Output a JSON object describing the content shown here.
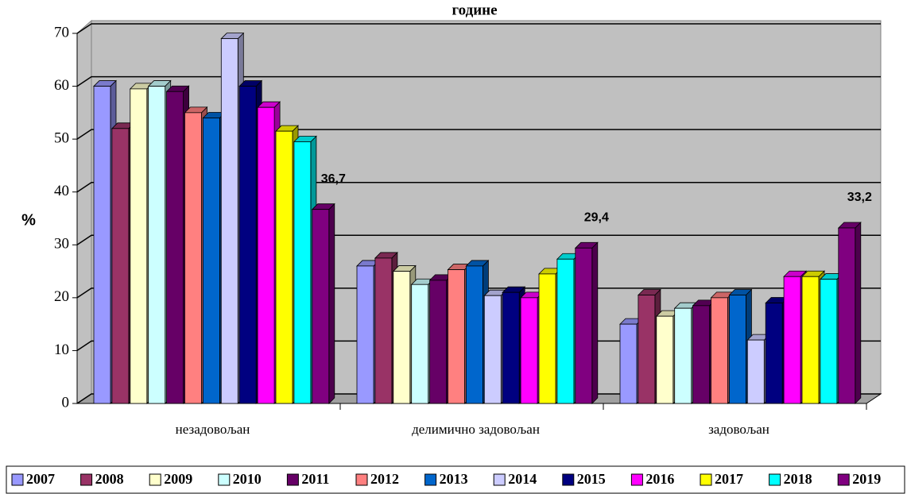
{
  "chart_data": {
    "type": "bar3d",
    "title": "године",
    "y_label": "%",
    "categories": [
      "незадовољан",
      "делимично задовољан",
      "задовољан"
    ],
    "ylim": [
      0,
      70
    ],
    "yticks": [
      0,
      10,
      20,
      30,
      40,
      50,
      60,
      70
    ],
    "grid": true,
    "legend": "bottom",
    "series": [
      {
        "name": "2007",
        "color": "#9999ff",
        "values": [
          60,
          26,
          15
        ]
      },
      {
        "name": "2008",
        "color": "#993366",
        "values": [
          52,
          27.5,
          20.5
        ]
      },
      {
        "name": "2009",
        "color": "#ffffcc",
        "values": [
          59.5,
          25,
          16.5
        ]
      },
      {
        "name": "2010",
        "color": "#ccffff",
        "values": [
          60,
          22.5,
          18
        ]
      },
      {
        "name": "2011",
        "color": "#660066",
        "values": [
          59,
          23.3,
          18.5
        ]
      },
      {
        "name": "2012",
        "color": "#ff8080",
        "values": [
          55,
          25.3,
          20
        ]
      },
      {
        "name": "2013",
        "color": "#0066cc",
        "values": [
          54,
          26,
          20.5
        ]
      },
      {
        "name": "2014",
        "color": "#ccccff",
        "values": [
          69,
          20.4,
          12
        ]
      },
      {
        "name": "2015",
        "color": "#000080",
        "values": [
          60,
          21,
          19
        ]
      },
      {
        "name": "2016",
        "color": "#ff00ff",
        "values": [
          56,
          20,
          24
        ]
      },
      {
        "name": "2017",
        "color": "#ffff00",
        "values": [
          51.5,
          24.5,
          24
        ]
      },
      {
        "name": "2018",
        "color": "#00ffff",
        "values": [
          49.5,
          27.3,
          23.5
        ]
      },
      {
        "name": "2019",
        "color": "#800080",
        "values": [
          36.7,
          29.4,
          33.2
        ],
        "value_labels": [
          "36,7",
          "29,4",
          "33,2"
        ]
      }
    ]
  }
}
